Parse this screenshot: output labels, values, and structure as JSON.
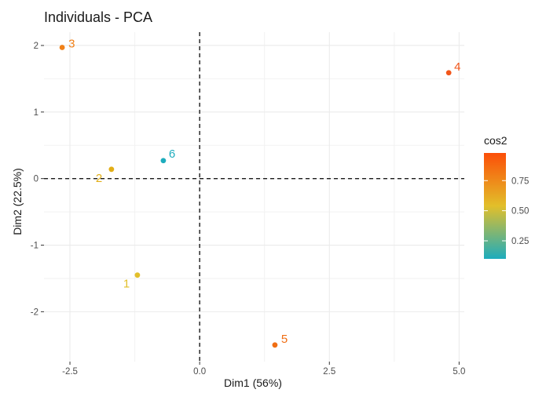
{
  "chart_data": {
    "type": "scatter",
    "title": "Individuals - PCA",
    "xlabel": "Dim1 (56%)",
    "ylabel": "Dim2 (22.5%)",
    "xlim": [
      -3.0,
      5.1
    ],
    "ylim": [
      -2.75,
      2.2
    ],
    "x_ticks": [
      {
        "value": -2.5,
        "label": "-2.5"
      },
      {
        "value": 0.0,
        "label": "0.0"
      },
      {
        "value": 2.5,
        "label": "2.5"
      },
      {
        "value": 5.0,
        "label": "5.0"
      }
    ],
    "y_ticks": [
      {
        "value": -2,
        "label": "-2"
      },
      {
        "value": -1,
        "label": "-1"
      },
      {
        "value": 0,
        "label": "0"
      },
      {
        "value": 1,
        "label": "1"
      },
      {
        "value": 2,
        "label": "2"
      }
    ],
    "grid": true,
    "reference_lines": {
      "x": 0,
      "y": 0,
      "style": "dashed"
    },
    "points": [
      {
        "label": "1",
        "x": -1.2,
        "y": -1.45,
        "cos2": 0.62,
        "color": "#E2BF2A"
      },
      {
        "label": "2",
        "x": -1.7,
        "y": 0.14,
        "cos2": 0.68,
        "color": "#E2AE16"
      },
      {
        "label": "3",
        "x": -2.65,
        "y": 1.97,
        "cos2": 0.85,
        "color": "#F08018"
      },
      {
        "label": "4",
        "x": 4.8,
        "y": 1.59,
        "cos2": 0.93,
        "color": "#F2561A"
      },
      {
        "label": "5",
        "x": 1.45,
        "y": -2.5,
        "cos2": 0.88,
        "color": "#F06E14"
      },
      {
        "label": "6",
        "x": -0.7,
        "y": 0.27,
        "cos2": 0.13,
        "color": "#1DACBD"
      }
    ],
    "legend": {
      "title": "cos2",
      "position": "right",
      "range": [
        0.1,
        0.98
      ],
      "gradient_colors": [
        "#1DACBD",
        "#E2BF2A",
        "#FC4E08"
      ],
      "ticks": [
        {
          "value": 0.25,
          "label": "0.25"
        },
        {
          "value": 0.5,
          "label": "0.50"
        },
        {
          "value": 0.75,
          "label": "0.75"
        }
      ]
    }
  }
}
